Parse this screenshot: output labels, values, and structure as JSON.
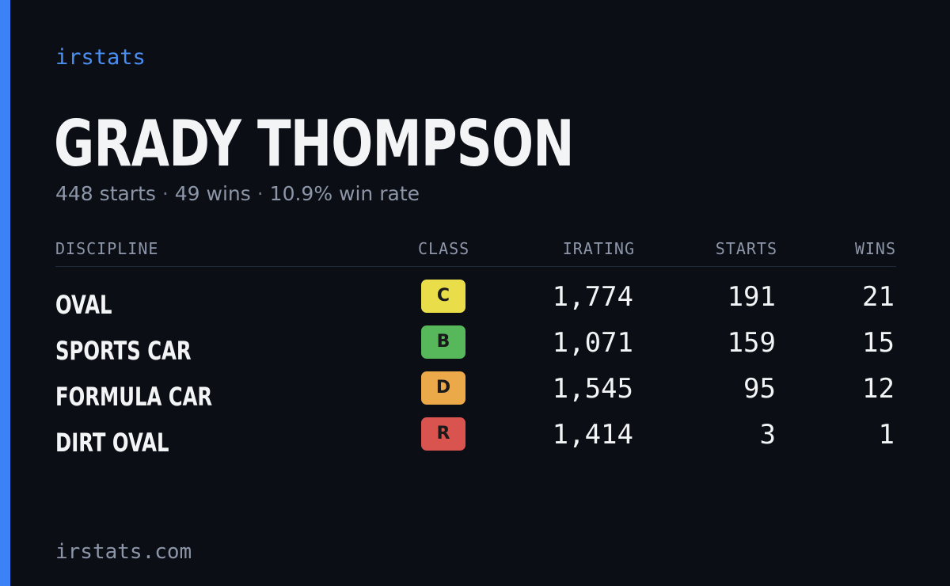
{
  "brand": "irstats",
  "driver": {
    "name": "GRADY THOMPSON"
  },
  "summary": {
    "starts": "448 starts",
    "wins": "49 wins",
    "win_rate": "10.9% win rate",
    "separator": "·"
  },
  "table": {
    "headers": {
      "discipline": "DISCIPLINE",
      "class": "CLASS",
      "irating": "IRATING",
      "starts": "STARTS",
      "wins": "WINS"
    },
    "rows": [
      {
        "discipline": "OVAL",
        "class": "C",
        "class_color": "#eadd4a",
        "irating": "1,774",
        "starts": "191",
        "wins": "21"
      },
      {
        "discipline": "SPORTS CAR",
        "class": "B",
        "class_color": "#56b85a",
        "irating": "1,071",
        "starts": "159",
        "wins": "15"
      },
      {
        "discipline": "FORMULA CAR",
        "class": "D",
        "class_color": "#eba94a",
        "irating": "1,545",
        "starts": "95",
        "wins": "12"
      },
      {
        "discipline": "DIRT OVAL",
        "class": "R",
        "class_color": "#d9534f",
        "irating": "1,414",
        "starts": "3",
        "wins": "1"
      }
    ]
  },
  "footer": {
    "site": "irstats.com"
  },
  "colors": {
    "accent": "#3b82f6",
    "background": "#0b0e14"
  }
}
